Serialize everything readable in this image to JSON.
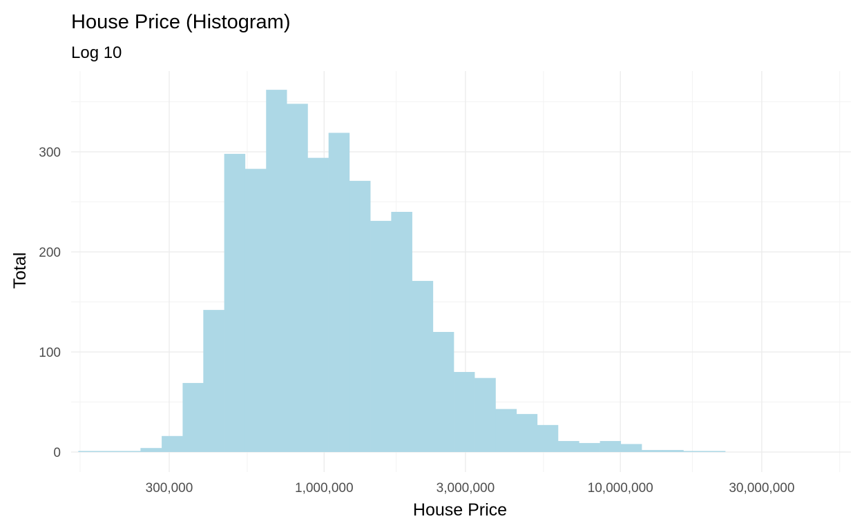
{
  "chart_data": {
    "type": "bar",
    "title": "House Price (Histogram)",
    "subtitle": "Log 10",
    "xlabel": "House Price",
    "ylabel": "Total",
    "x_scale": "log10",
    "xlim": [
      140000,
      60000000
    ],
    "ylim": [
      0,
      375
    ],
    "x_ticks": [
      300000,
      1000000,
      3000000,
      10000000,
      30000000
    ],
    "x_tick_labels": [
      "300,000",
      "1,000,000",
      "3,000,000",
      "10,000,000",
      "30,000,000"
    ],
    "x_minor_ticks": [
      150000,
      550000,
      1750000,
      5500000,
      17500000,
      55000000
    ],
    "y_ticks": [
      0,
      100,
      200,
      300
    ],
    "y_tick_labels": [
      "0",
      "100",
      "200",
      "300"
    ],
    "y_minor_ticks": [
      50,
      150,
      250,
      350
    ],
    "grid": true,
    "bar_color": "#add8e6",
    "bins": [
      {
        "x0": 148000,
        "x1": 174000,
        "count": 1
      },
      {
        "x0": 174000,
        "x1": 204000,
        "count": 1
      },
      {
        "x0": 204000,
        "x1": 240000,
        "count": 1
      },
      {
        "x0": 240000,
        "x1": 283000,
        "count": 4
      },
      {
        "x0": 283000,
        "x1": 333000,
        "count": 16
      },
      {
        "x0": 333000,
        "x1": 391000,
        "count": 69
      },
      {
        "x0": 391000,
        "x1": 460000,
        "count": 142
      },
      {
        "x0": 460000,
        "x1": 541000,
        "count": 298
      },
      {
        "x0": 541000,
        "x1": 637000,
        "count": 283
      },
      {
        "x0": 637000,
        "x1": 748000,
        "count": 362
      },
      {
        "x0": 748000,
        "x1": 880000,
        "count": 348
      },
      {
        "x0": 880000,
        "x1": 1035000,
        "count": 294
      },
      {
        "x0": 1035000,
        "x1": 1217000,
        "count": 319
      },
      {
        "x0": 1217000,
        "x1": 1432000,
        "count": 271
      },
      {
        "x0": 1432000,
        "x1": 1684000,
        "count": 231
      },
      {
        "x0": 1684000,
        "x1": 1981000,
        "count": 240
      },
      {
        "x0": 1981000,
        "x1": 2330000,
        "count": 171
      },
      {
        "x0": 2330000,
        "x1": 2740000,
        "count": 120
      },
      {
        "x0": 2740000,
        "x1": 3220000,
        "count": 80
      },
      {
        "x0": 3220000,
        "x1": 3790000,
        "count": 74
      },
      {
        "x0": 3790000,
        "x1": 4460000,
        "count": 43
      },
      {
        "x0": 4460000,
        "x1": 5240000,
        "count": 38
      },
      {
        "x0": 5240000,
        "x1": 6160000,
        "count": 27
      },
      {
        "x0": 6160000,
        "x1": 7250000,
        "count": 11
      },
      {
        "x0": 7250000,
        "x1": 8530000,
        "count": 9
      },
      {
        "x0": 8530000,
        "x1": 10030000,
        "count": 11
      },
      {
        "x0": 10030000,
        "x1": 11800000,
        "count": 8
      },
      {
        "x0": 11800000,
        "x1": 13880000,
        "count": 2
      },
      {
        "x0": 13880000,
        "x1": 16320000,
        "count": 2
      },
      {
        "x0": 16320000,
        "x1": 19200000,
        "count": 1
      },
      {
        "x0": 19200000,
        "x1": 22590000,
        "count": 1
      }
    ]
  }
}
